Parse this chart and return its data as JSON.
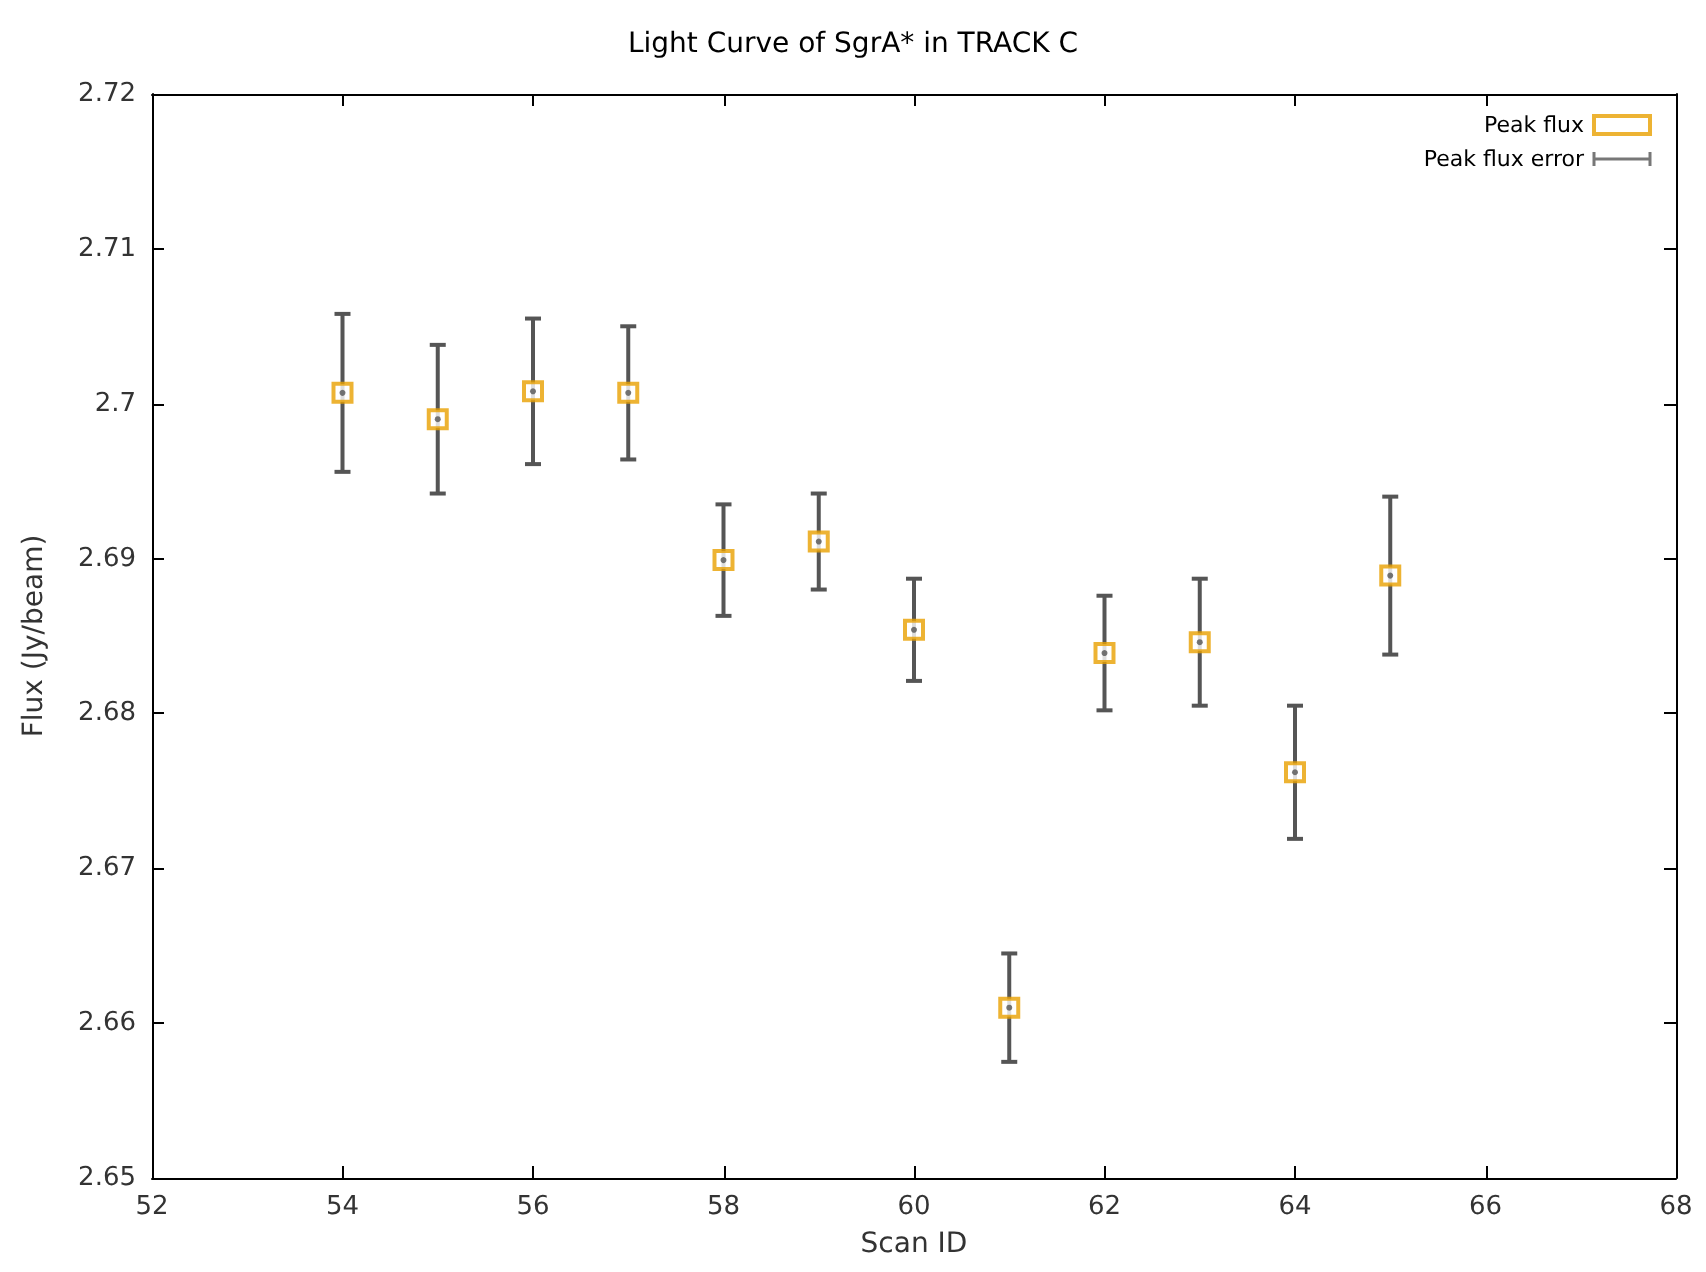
{
  "chart_data": {
    "type": "scatter",
    "title": "Light Curve of SgrA* in TRACK C",
    "xlabel": "Scan ID",
    "ylabel": "Flux (Jy/beam)",
    "x": [
      54,
      55,
      56,
      57,
      58,
      59,
      60,
      61,
      62,
      63,
      64,
      65
    ],
    "series": [
      {
        "name": "Peak flux",
        "color": "#e8a000",
        "values": [
          2.7007,
          2.699,
          2.7008,
          2.7007,
          2.6899,
          2.6911,
          2.6854,
          2.661,
          2.6839,
          2.6846,
          2.6762,
          2.6889
        ]
      },
      {
        "name": "Peak flux error",
        "color": "#555555",
        "marker": "circle",
        "values": [
          2.7007,
          2.699,
          2.7008,
          2.7007,
          2.6899,
          2.6911,
          2.6854,
          2.661,
          2.6839,
          2.6846,
          2.6762,
          2.6889
        ],
        "errors": [
          0.0051,
          0.0048,
          0.0047,
          0.0043,
          0.0036,
          0.0031,
          0.0033,
          0.0035,
          0.0037,
          0.0041,
          0.0043,
          0.0051
        ]
      }
    ],
    "xlim": [
      52,
      68
    ],
    "xticks": [
      52,
      54,
      56,
      58,
      60,
      62,
      64,
      66,
      68
    ],
    "ylim": [
      2.65,
      2.72
    ],
    "yticks": [
      2.65,
      2.66,
      2.67,
      2.68,
      2.69,
      2.7,
      2.71,
      2.72
    ],
    "grid": false,
    "legend": "top right",
    "marker": "square"
  }
}
